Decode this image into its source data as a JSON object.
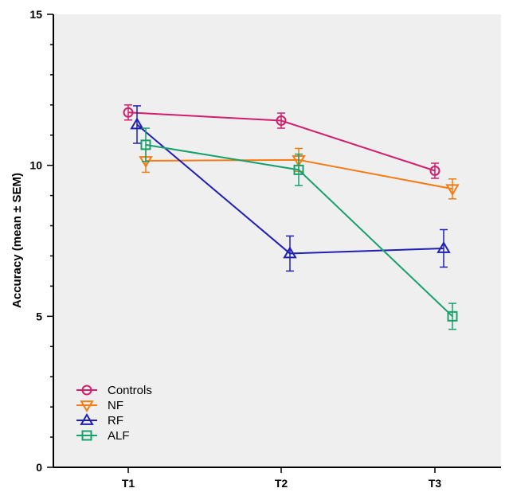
{
  "chart_data": {
    "type": "line",
    "ylabel": "Accuracy (mean ± SEM)",
    "xlabel": "",
    "title": "",
    "categories": [
      "T1",
      "T2",
      "T3"
    ],
    "ylim": [
      0,
      15
    ],
    "yticks": [
      "0",
      "5",
      "10",
      "15"
    ],
    "grid": false,
    "legend_position": "bottom-left",
    "series": [
      {
        "name": "Controls",
        "color": "#d11f6e",
        "marker": "circle",
        "values": [
          11.75,
          11.48,
          9.82
        ],
        "sem": [
          0.25,
          0.25,
          0.25
        ]
      },
      {
        "name": "NF",
        "color": "#f57c14",
        "marker": "triangle-down",
        "values": [
          10.15,
          10.18,
          9.22
        ],
        "sem": [
          0.38,
          0.38,
          0.33
        ]
      },
      {
        "name": "RF",
        "color": "#1f1fb4",
        "marker": "triangle-up",
        "values": [
          11.35,
          7.08,
          7.25
        ],
        "sem": [
          0.62,
          0.58,
          0.62
        ]
      },
      {
        "name": "ALF",
        "color": "#18a06c",
        "marker": "square",
        "values": [
          10.68,
          9.85,
          5.0
        ],
        "sem": [
          0.55,
          0.52,
          0.43
        ]
      }
    ]
  }
}
